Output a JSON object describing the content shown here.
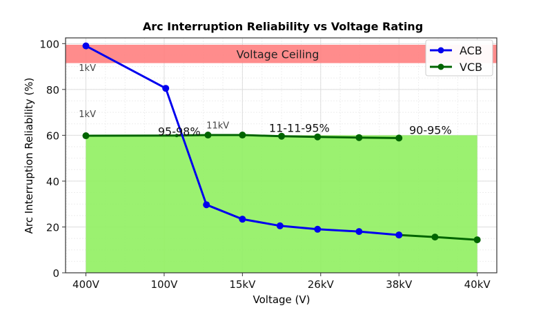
{
  "chart_data": {
    "type": "line",
    "title": "Arc Interruption Reliability vs Voltage Rating",
    "xlabel": "Voltage (V)",
    "ylabel": "Arc Interruption Reliability (%)",
    "x_ticks": [
      {
        "pos": 0,
        "label": "400V"
      },
      {
        "pos": 1,
        "label": "100V"
      },
      {
        "pos": 2,
        "label": "15kV"
      },
      {
        "pos": 3,
        "label": "26kV"
      },
      {
        "pos": 4,
        "label": "38kV"
      },
      {
        "pos": 5,
        "label": "40kV"
      }
    ],
    "y_ticks": [
      0,
      20,
      40,
      60,
      80,
      100
    ],
    "xlim": [
      -0.26,
      5.25
    ],
    "ylim": [
      0,
      102.5
    ],
    "grid": true,
    "legend_placement": "top-right",
    "series": [
      {
        "name": "ACB",
        "color": "#0000ee",
        "x": [
          0,
          1.02,
          1.54,
          2,
          2.48,
          2.96,
          3.49,
          4
        ],
        "y": [
          99,
          80.5,
          29.7,
          23.4,
          20.5,
          19,
          18,
          16.5
        ]
      },
      {
        "name": "VCB",
        "color": "#006400",
        "x": [
          0,
          1.16,
          1.56,
          2,
          2.5,
          2.96,
          3.49,
          4
        ],
        "y": [
          59.8,
          59.9,
          60.1,
          60.1,
          59.6,
          59.3,
          59,
          58.8
        ]
      },
      {
        "name": "",
        "color": "#006400",
        "x": [
          4,
          4.46,
          5
        ],
        "y": [
          16.5,
          15.6,
          14.4
        ]
      }
    ],
    "bands": [
      {
        "label": "Voltage Ceiling",
        "y0": 91.5,
        "y1": 99.5,
        "x0": -0.26,
        "x1": 5.25,
        "color": "#ff8080"
      },
      {
        "label": "",
        "y0": 0,
        "y1": 60,
        "x0": 0,
        "x1": 5,
        "color": "#90f060"
      }
    ],
    "annotations": [
      {
        "text": "1kV",
        "x": -0.09,
        "y": 88,
        "size": "small"
      },
      {
        "text": "1kV",
        "x": -0.09,
        "y": 68,
        "size": "small"
      },
      {
        "text": "95-98%",
        "x": 0.92,
        "y": 60,
        "size": "large"
      },
      {
        "text": "11kV",
        "x": 1.54,
        "y": 63,
        "size": "small"
      },
      {
        "text": "11-11-95%",
        "x": 2.34,
        "y": 61.5,
        "size": "large"
      },
      {
        "text": "90-95%",
        "x": 4.13,
        "y": 60.5,
        "size": "large"
      }
    ]
  }
}
